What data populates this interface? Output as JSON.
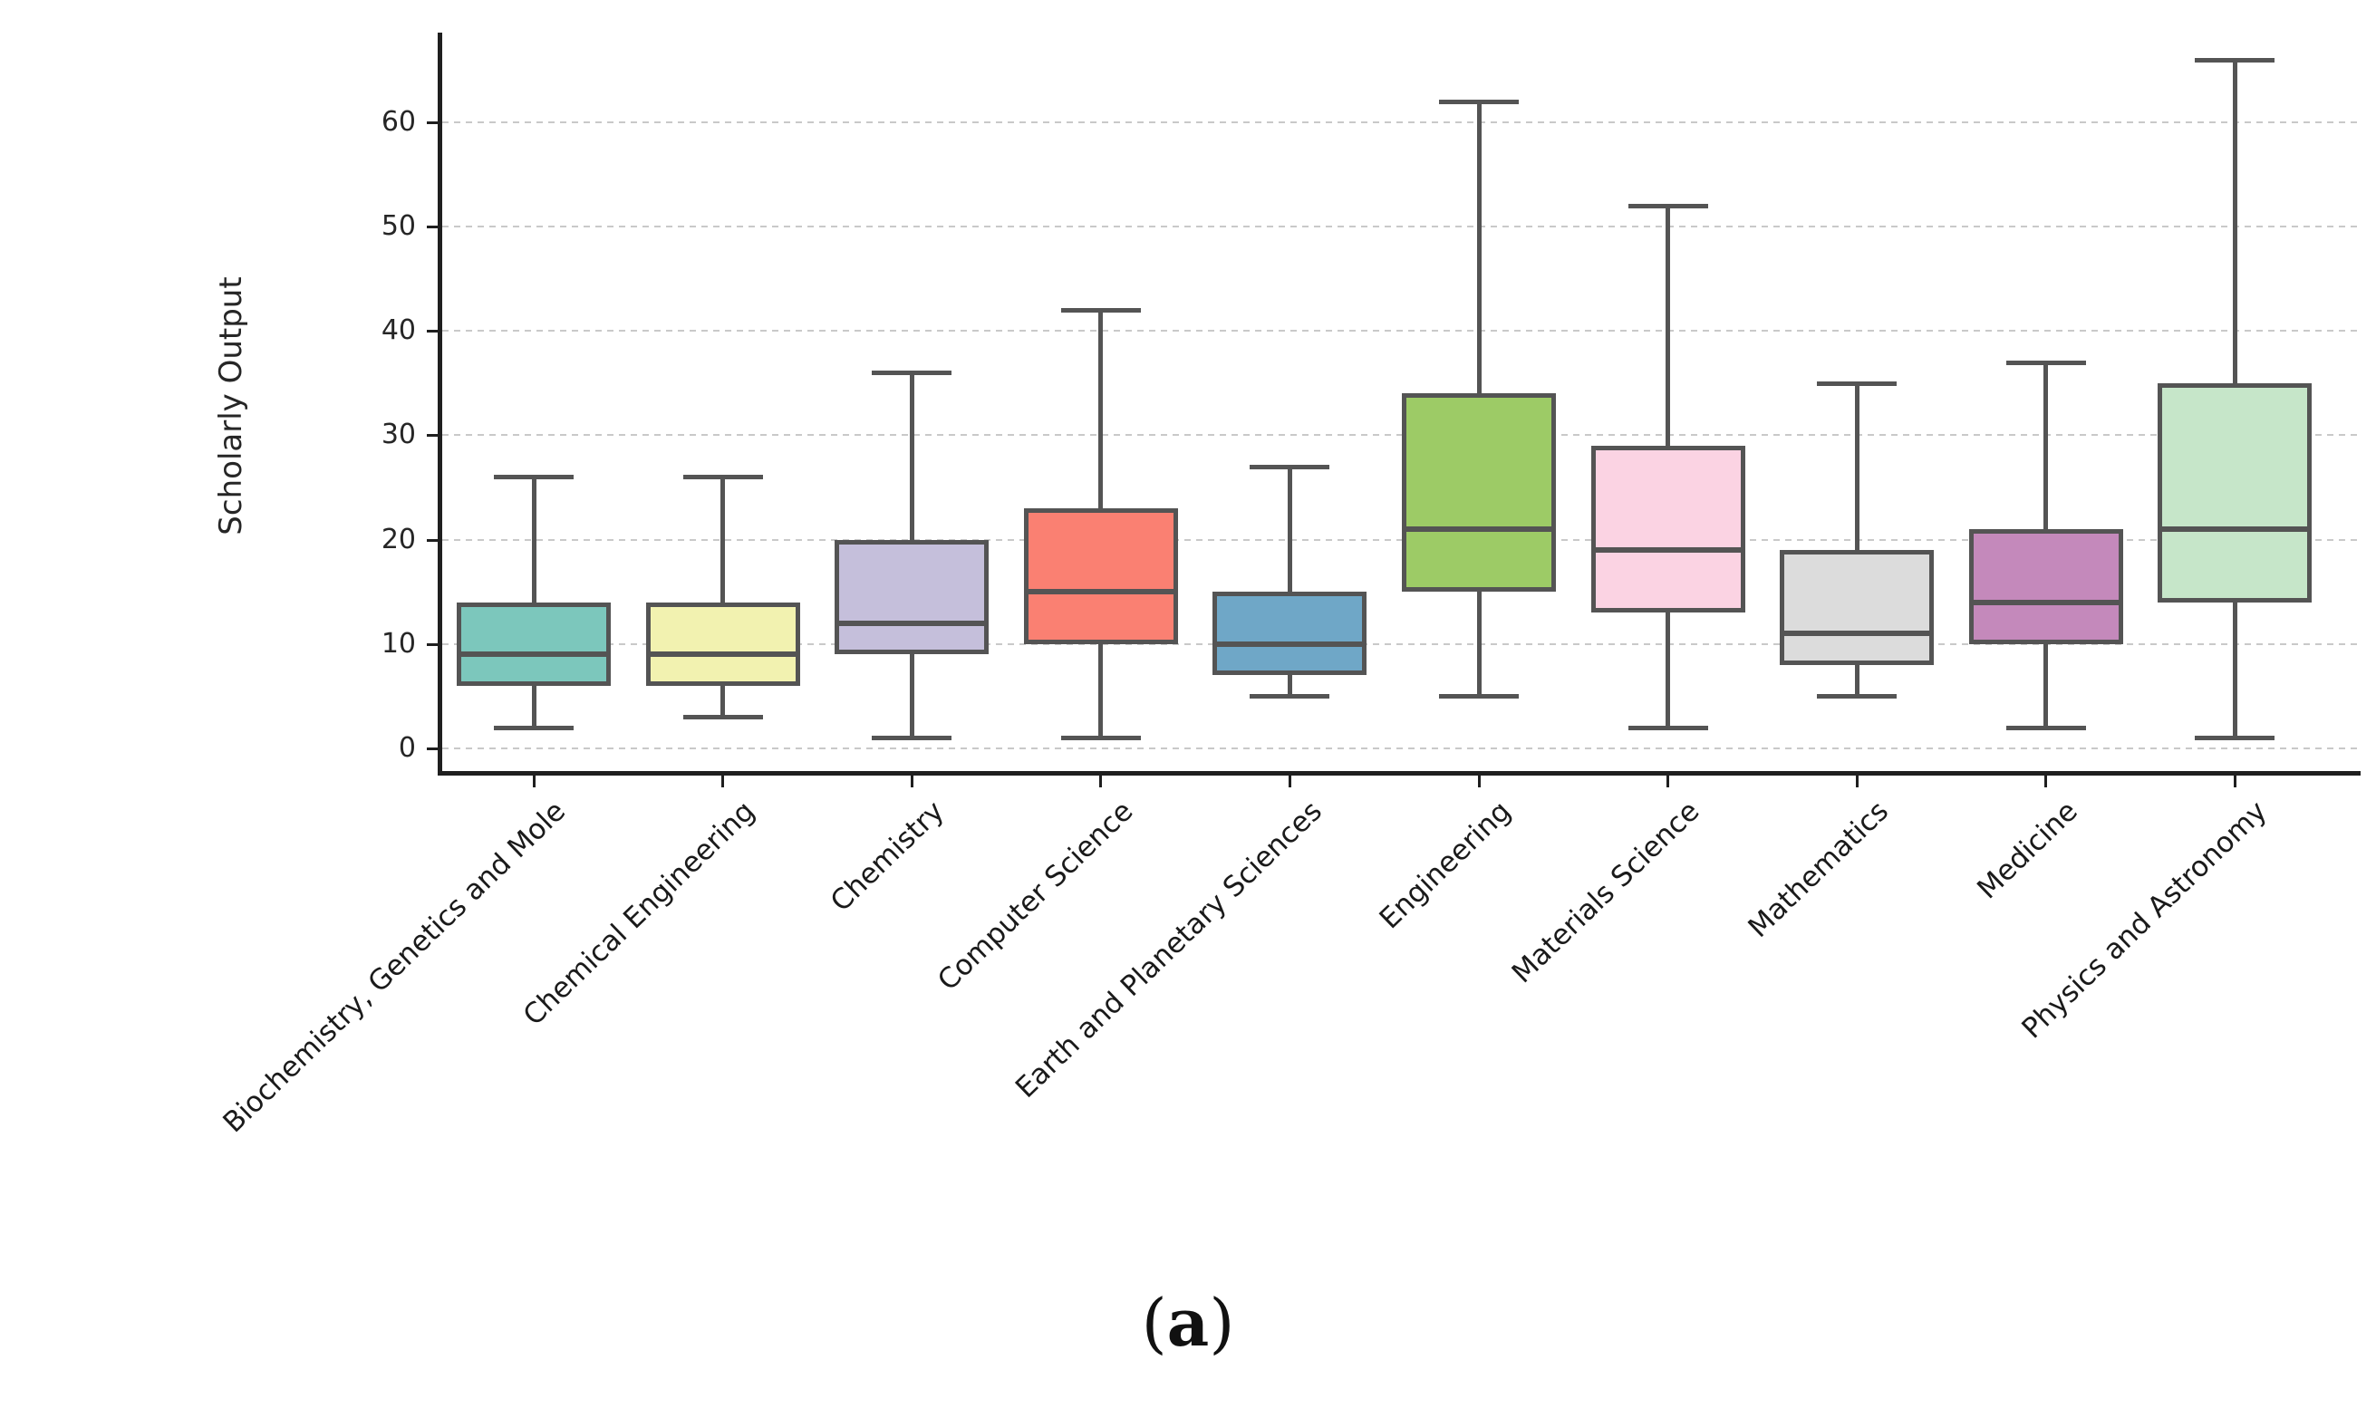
{
  "figure": {
    "caption_open": "(",
    "caption_letter": "a",
    "caption_close": ")"
  },
  "chart_data": {
    "type": "box",
    "title": "",
    "xlabel": "",
    "ylabel": "Scholarly Output",
    "ylim": [
      -2.5,
      68
    ],
    "yticks": [
      0,
      10,
      20,
      30,
      40,
      50,
      60
    ],
    "grid": "horizontal dashed",
    "legend": "none",
    "categories": [
      "Biochemistry, Genetics and Mole",
      "Chemical Engineering",
      "Chemistry",
      "Computer Science",
      "Earth and Planetary Sciences",
      "Engineering",
      "Materials Science",
      "Mathematics",
      "Medicine",
      "Physics and Astronomy"
    ],
    "boxes": [
      {
        "label": "Biochemistry, Genetics and Mole",
        "color": "#7CC7BC",
        "whisker_low": 2,
        "q1": 6,
        "median": 9,
        "q3": 14,
        "whisker_high": 26
      },
      {
        "label": "Chemical Engineering",
        "color": "#F2F2B0",
        "whisker_low": 3,
        "q1": 6,
        "median": 9,
        "q3": 14,
        "whisker_high": 26
      },
      {
        "label": "Chemistry",
        "color": "#C5BFDB",
        "whisker_low": 1,
        "q1": 9,
        "median": 12,
        "q3": 20,
        "whisker_high": 36
      },
      {
        "label": "Computer Science",
        "color": "#FA8072",
        "whisker_low": 1,
        "q1": 10,
        "median": 15,
        "q3": 23,
        "whisker_high": 42
      },
      {
        "label": "Earth and Planetary Sciences",
        "color": "#6FA7C7",
        "whisker_low": 5,
        "q1": 7,
        "median": 10,
        "q3": 15,
        "whisker_high": 27
      },
      {
        "label": "Engineering",
        "color": "#9DCB66",
        "whisker_low": 5,
        "q1": 15,
        "median": 21,
        "q3": 34,
        "whisker_high": 62
      },
      {
        "label": "Materials Science",
        "color": "#FBD3E3",
        "whisker_low": 2,
        "q1": 13,
        "median": 19,
        "q3": 29,
        "whisker_high": 52
      },
      {
        "label": "Mathematics",
        "color": "#DCDCDC",
        "whisker_low": 5,
        "q1": 8,
        "median": 11,
        "q3": 19,
        "whisker_high": 35
      },
      {
        "label": "Medicine",
        "color": "#C489BB",
        "whisker_low": 2,
        "q1": 10,
        "median": 14,
        "q3": 21,
        "whisker_high": 37
      },
      {
        "label": "Physics and Astronomy",
        "color": "#C6E6C9",
        "whisker_low": 1,
        "q1": 14,
        "median": 21,
        "q3": 35,
        "whisker_high": 66
      }
    ]
  },
  "colors": {
    "box_edge": "#545454",
    "axis": "#1f1f1f",
    "grid": "#c9c9c9",
    "tick_label": "#262626"
  }
}
